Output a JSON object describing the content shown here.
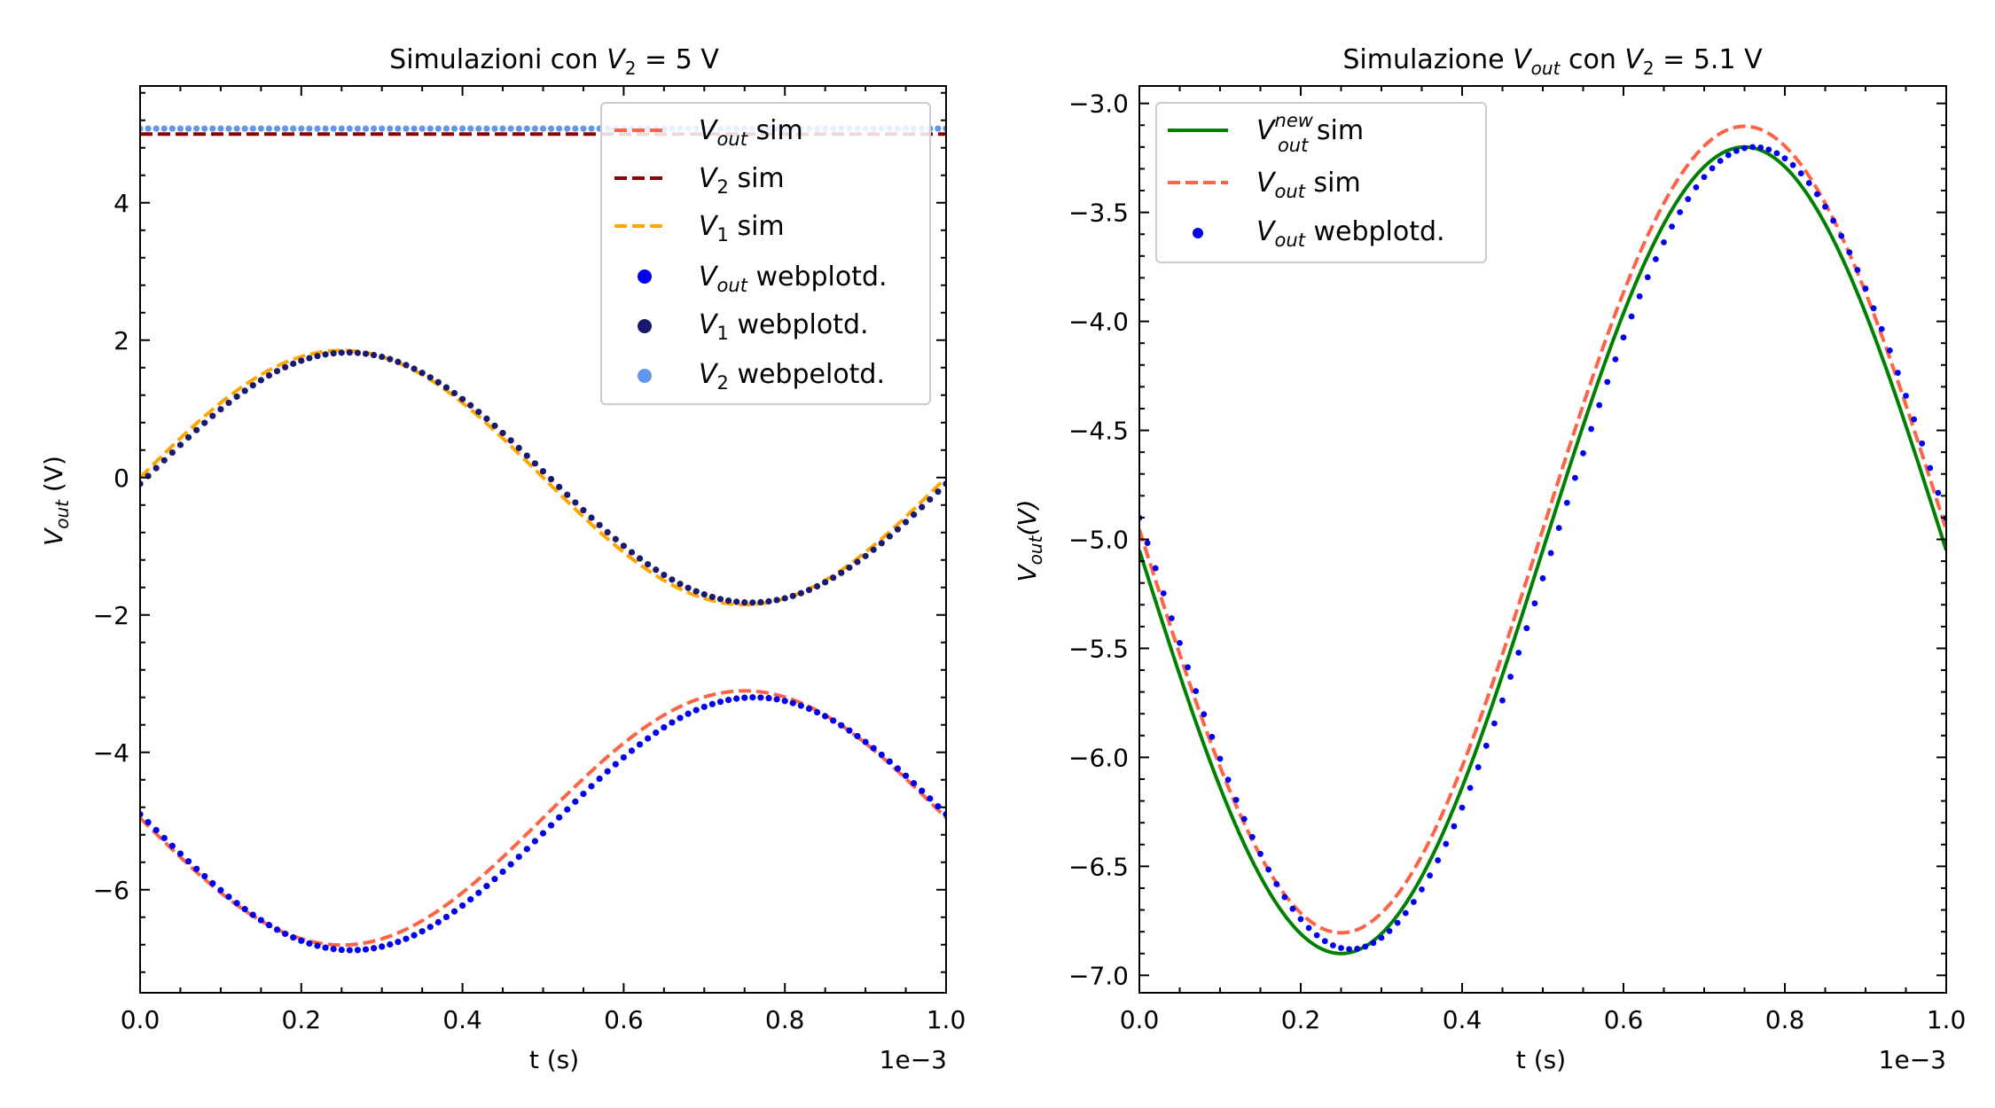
{
  "chart_data": [
    {
      "type": "line",
      "title": "Simulazioni con V₂ = 5 V",
      "xlabel": "t (s)",
      "ylabel": "V_out (V)",
      "x_offset_label": "1e−3",
      "xlim": [
        0.0,
        0.001
      ],
      "ylim": [
        -7.5,
        5.7
      ],
      "x_ticks": [
        0.0,
        0.0002,
        0.0004,
        0.0006,
        0.0008,
        0.001
      ],
      "x_tick_labels": [
        "0.0",
        "0.2",
        "0.4",
        "0.6",
        "0.8",
        "1.0"
      ],
      "y_ticks": [
        -6,
        -4,
        -2,
        0,
        2,
        4
      ],
      "y_tick_labels": [
        "−6",
        "−4",
        "−2",
        "0",
        "2",
        "4"
      ],
      "legend_position": "top-right",
      "series": [
        {
          "name": "V_out sim",
          "style": "dashed",
          "color": "#ff6347",
          "model": {
            "kind": "sine",
            "offset": -4.955,
            "amplitude": 1.85,
            "phase_sign": -1
          }
        },
        {
          "name": "V₂ sim",
          "style": "dashed",
          "color": "#8b0000",
          "model": {
            "kind": "const",
            "value": 5.0
          }
        },
        {
          "name": "V₁ sim",
          "style": "dashed",
          "color": "#ffa500",
          "model": {
            "kind": "sine",
            "offset": 0.0,
            "amplitude": 1.85,
            "phase_sign": 1
          }
        },
        {
          "name": "V_out webplotd.",
          "style": "dots",
          "color": "#0000ee",
          "model": {
            "kind": "sine",
            "offset": -5.04,
            "amplitude": 1.84,
            "phase_sign": -1,
            "lag": 1.2e-05
          }
        },
        {
          "name": "V₁ webplotd.",
          "style": "dots",
          "color": "#191970",
          "model": {
            "kind": "sine",
            "offset": 0.0,
            "amplitude": 1.82,
            "phase_sign": 1,
            "lag": 8e-06
          }
        },
        {
          "name": "V₂ webpelotd.",
          "style": "dots",
          "color": "#6495ed",
          "model": {
            "kind": "const",
            "value": 5.08
          }
        }
      ]
    },
    {
      "type": "line",
      "title": "Simulazione V_out con V₂ = 5.1 V",
      "xlabel": "t (s)",
      "ylabel": "V_out(V)",
      "x_offset_label": "1e−3",
      "xlim": [
        0.0,
        0.001
      ],
      "ylim": [
        -7.08,
        -2.92
      ],
      "x_ticks": [
        0.0,
        0.0002,
        0.0004,
        0.0006,
        0.0008,
        0.001
      ],
      "x_tick_labels": [
        "0.0",
        "0.2",
        "0.4",
        "0.6",
        "0.8",
        "1.0"
      ],
      "y_ticks": [
        -7.0,
        -6.5,
        -6.0,
        -5.5,
        -5.0,
        -4.5,
        -4.0,
        -3.5,
        -3.0
      ],
      "y_tick_labels": [
        "−7.0",
        "−6.5",
        "−6.0",
        "−5.5",
        "−5.0",
        "−4.5",
        "−4.0",
        "−3.5",
        "−3.0"
      ],
      "legend_position": "top-left",
      "series": [
        {
          "name": "V_out^new sim",
          "style": "solid",
          "color": "#008000",
          "model": {
            "kind": "sine",
            "offset": -5.05,
            "amplitude": 1.85,
            "phase_sign": -1
          }
        },
        {
          "name": "V_out sim",
          "style": "dashed",
          "color": "#ff6347",
          "model": {
            "kind": "sine",
            "offset": -4.955,
            "amplitude": 1.85,
            "phase_sign": -1
          }
        },
        {
          "name": "V_out webplotd.",
          "style": "dots",
          "color": "#0000ee",
          "model": {
            "kind": "sine",
            "offset": -5.04,
            "amplitude": 1.84,
            "phase_sign": -1,
            "lag": 1.2e-05
          }
        }
      ]
    }
  ]
}
